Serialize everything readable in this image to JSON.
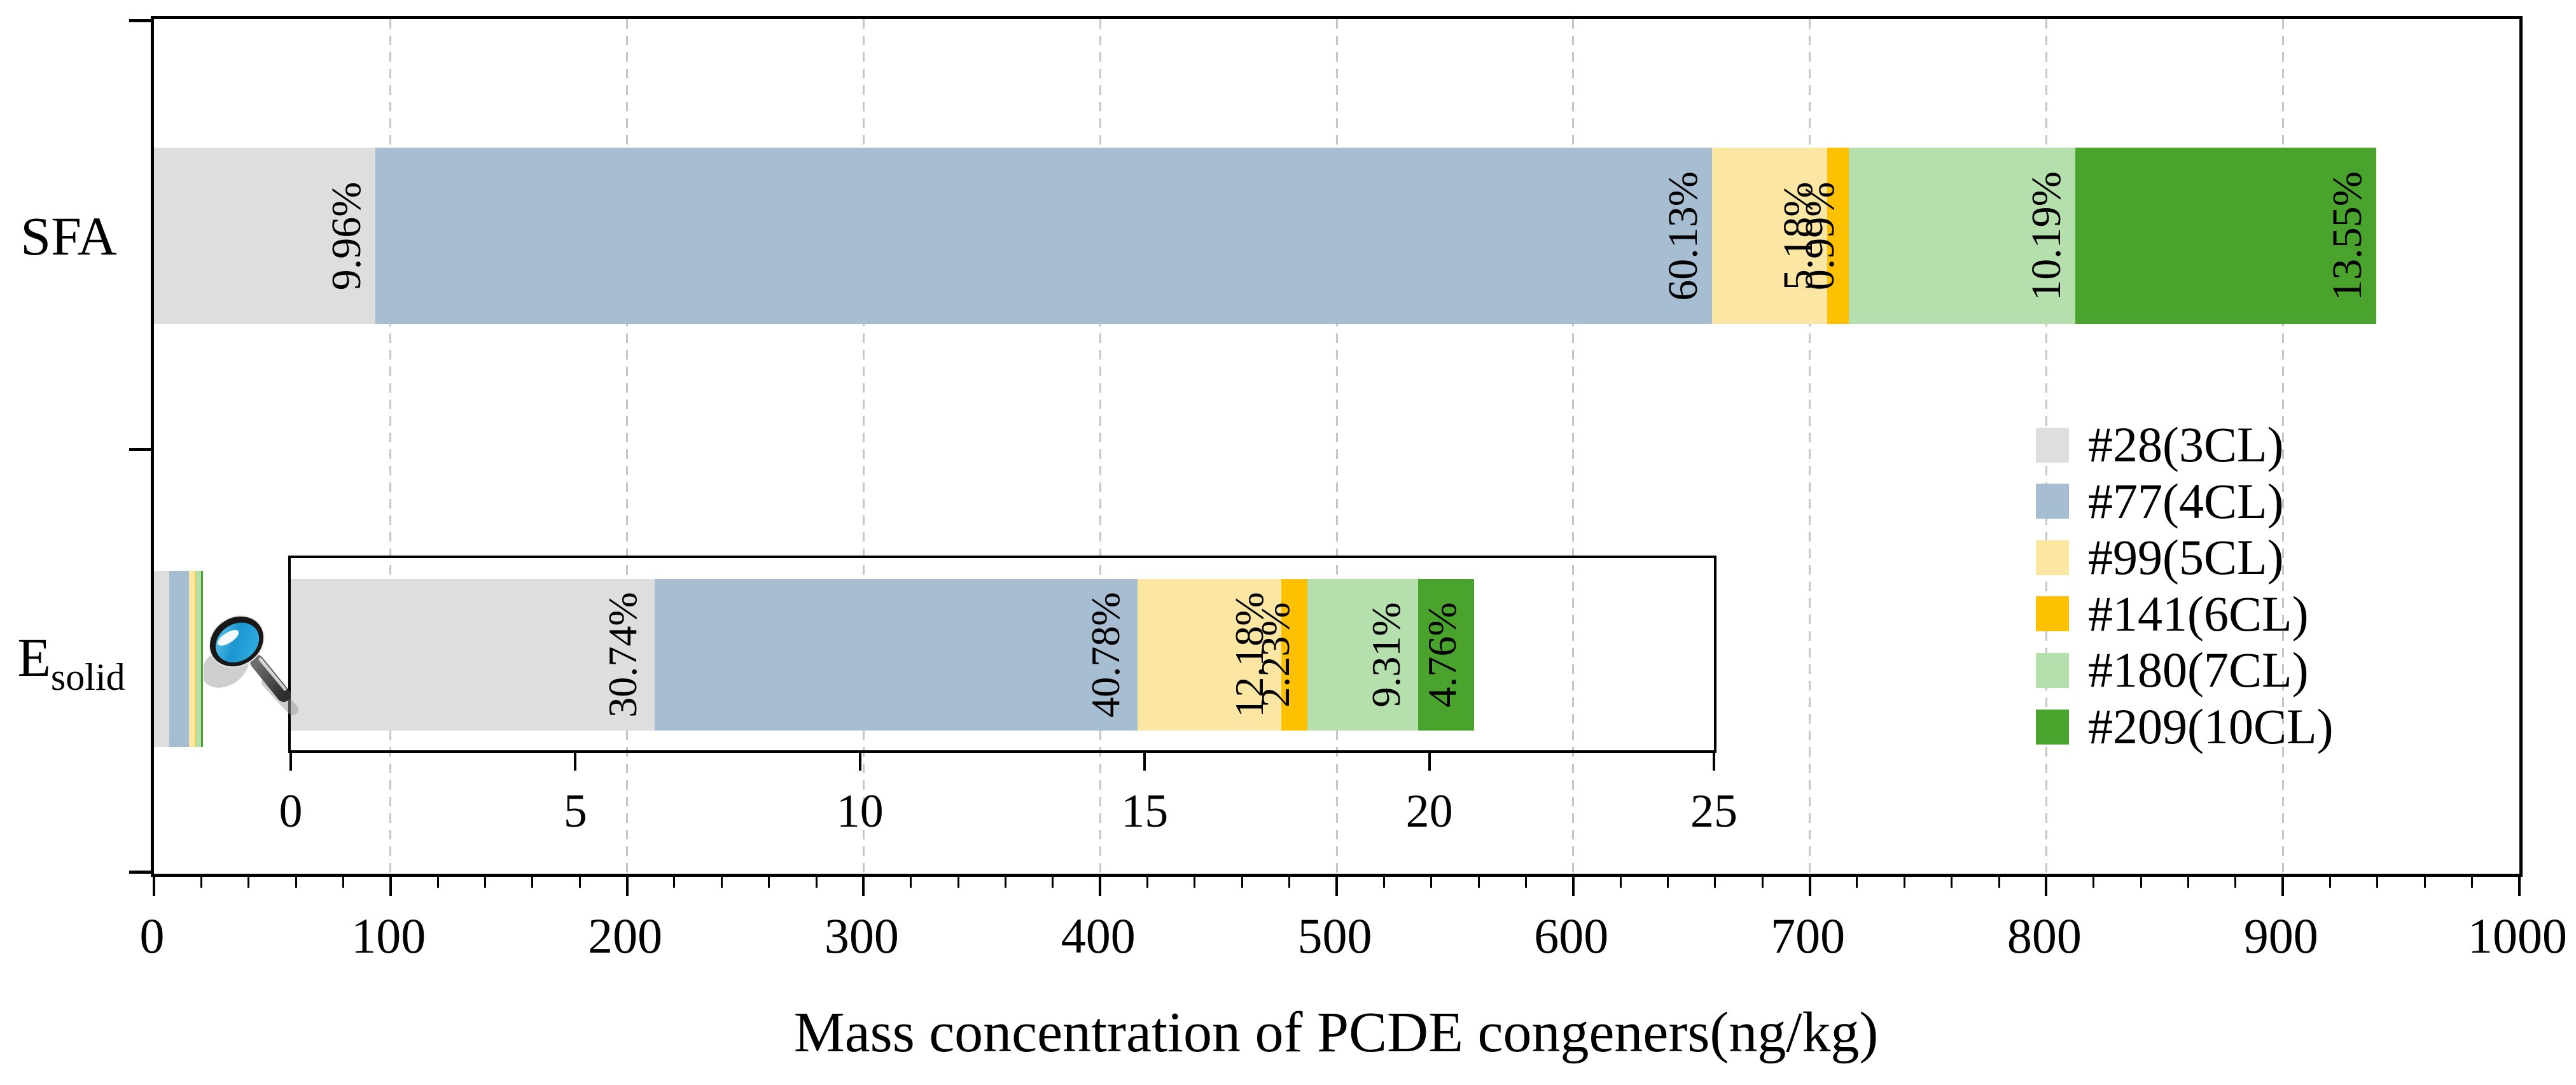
{
  "chart_data": {
    "type": "bar",
    "orientation": "horizontal",
    "stacked": true,
    "xlabel": "Mass concentration of PCDE congeners(ng/kg)",
    "xlim": [
      0,
      1000
    ],
    "x_major_ticks": [
      0,
      100,
      200,
      300,
      400,
      500,
      600,
      700,
      800,
      900,
      1000
    ],
    "x_minor_tick_step": 20,
    "grid": {
      "show": true,
      "axis": "x",
      "step": 100,
      "style": "dashed",
      "color": "#c6c6c6"
    },
    "categories": [
      {
        "id": "SFA",
        "label": "SFA",
        "subscript": ""
      },
      {
        "id": "Esolid",
        "label": "E",
        "subscript": "solid"
      }
    ],
    "series": [
      {
        "name": "#28(3CL)",
        "color": "#dedede",
        "values": [
          93.6,
          6.39
        ],
        "pct": [
          "9.96%",
          "30.74%"
        ]
      },
      {
        "name": "#77(4CL)",
        "color": "#a7bdd2",
        "values": [
          565.0,
          8.48
        ],
        "pct": [
          "60.13%",
          "40.78%"
        ]
      },
      {
        "name": "#99(5CL)",
        "color": "#fbe7a3",
        "values": [
          48.7,
          2.53
        ],
        "pct": [
          "5.18%",
          "12.18%"
        ]
      },
      {
        "name": "#141(6CL)",
        "color": "#fdc101",
        "values": [
          9.3,
          0.46
        ],
        "pct": [
          "0.99%",
          "2.23%"
        ]
      },
      {
        "name": "#180(7CL)",
        "color": "#b5dfac",
        "values": [
          95.7,
          1.94
        ],
        "pct": [
          "10.19%",
          "9.31%"
        ]
      },
      {
        "name": "#209(10CL)",
        "color": "#4aa32d",
        "values": [
          127.3,
          0.99
        ],
        "pct": [
          "13.55%",
          "4.76%"
        ]
      }
    ],
    "totals_ng_per_kg": [
      939.6,
      20.8
    ],
    "inset": {
      "description": "zoomed view of Esolid bar",
      "category": "Esolid",
      "xlim": [
        0,
        25
      ],
      "x_major_ticks": [
        0,
        5,
        10,
        15,
        20,
        25
      ]
    },
    "legend": {
      "entries": [
        "#28(3CL)",
        "#77(4CL)",
        "#99(5CL)",
        "#141(6CL)",
        "#180(7CL)",
        "#209(10CL)"
      ],
      "position": "center-right"
    }
  },
  "icons": {
    "magnifier": "magnifying-glass"
  }
}
